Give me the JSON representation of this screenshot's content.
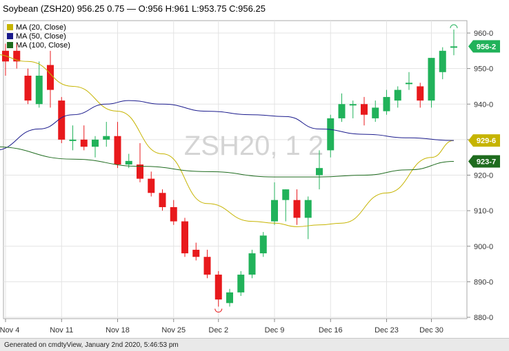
{
  "header": {
    "symbol": "Soybean (ZSH20)",
    "last": "956.25",
    "change": "0.75",
    "ohlc": "— O:956 H:961 L:953.75 C:956.25"
  },
  "watermark": "ZSH20, 1 2",
  "footer": "Generated on cmdtyView, January 2nd 2020, 5:46:53 pm",
  "colors": {
    "up": "#21b25a",
    "down": "#e8191c",
    "ma20": "#c6b400",
    "ma50": "#1a1a8c",
    "ma100": "#1e6b1e"
  },
  "chart_data": {
    "type": "candlestick",
    "ylim": [
      880,
      965
    ],
    "yticks": [
      "960-0",
      "950-0",
      "940-0",
      "930-0",
      "920-0",
      "910-0",
      "900-0",
      "890-0",
      "880-0"
    ],
    "xticks": [
      "Nov 4",
      "Nov 11",
      "Nov 18",
      "Nov 25",
      "Dec 2",
      "Dec 9",
      "Dec 16",
      "Dec 23",
      "Dec 30"
    ],
    "xtick_index": [
      0,
      5,
      10,
      15,
      19,
      24,
      29,
      34,
      38
    ],
    "legend": [
      "MA (20, Close)",
      "MA (50, Close)",
      "MA (100, Close)"
    ],
    "badges": [
      {
        "label": "956-2",
        "value": 956.25,
        "color": "#21b25a"
      },
      {
        "label": "929-6",
        "value": 929.75,
        "color": "#c6b400"
      },
      {
        "label": "923-7",
        "value": 923.875,
        "color": "#1e6b1e"
      }
    ],
    "candles": [
      {
        "o": 955,
        "h": 957,
        "l": 948,
        "c": 952
      },
      {
        "o": 955,
        "h": 957,
        "l": 950,
        "c": 952
      },
      {
        "o": 948,
        "h": 950,
        "l": 940,
        "c": 941
      },
      {
        "o": 940,
        "h": 952,
        "l": 939,
        "c": 948
      },
      {
        "o": 951,
        "h": 955,
        "l": 939,
        "c": 944
      },
      {
        "o": 941,
        "h": 942,
        "l": 929,
        "c": 930
      },
      {
        "o": 930,
        "h": 934,
        "l": 927,
        "c": 930
      },
      {
        "o": 930,
        "h": 934,
        "l": 927,
        "c": 928
      },
      {
        "o": 928,
        "h": 931,
        "l": 925,
        "c": 930
      },
      {
        "o": 930,
        "h": 935,
        "l": 928,
        "c": 931
      },
      {
        "o": 931,
        "h": 935,
        "l": 922,
        "c": 923
      },
      {
        "o": 923,
        "h": 926,
        "l": 922,
        "c": 924
      },
      {
        "o": 923,
        "h": 929,
        "l": 918,
        "c": 919
      },
      {
        "o": 919,
        "h": 921,
        "l": 914,
        "c": 915
      },
      {
        "o": 915,
        "h": 916,
        "l": 910,
        "c": 911
      },
      {
        "o": 911,
        "h": 913,
        "l": 906,
        "c": 907
      },
      {
        "o": 907,
        "h": 908,
        "l": 897,
        "c": 898
      },
      {
        "o": 899,
        "h": 901,
        "l": 896,
        "c": 897
      },
      {
        "o": 897,
        "h": 899,
        "l": 891,
        "c": 892
      },
      {
        "o": 892,
        "h": 893,
        "l": 883,
        "c": 885
      },
      {
        "o": 884,
        "h": 888,
        "l": 883,
        "c": 887
      },
      {
        "o": 887,
        "h": 893,
        "l": 886,
        "c": 892
      },
      {
        "o": 892,
        "h": 899,
        "l": 891,
        "c": 898
      },
      {
        "o": 898,
        "h": 904,
        "l": 897,
        "c": 903
      },
      {
        "o": 907,
        "h": 918,
        "l": 906,
        "c": 913
      },
      {
        "o": 913,
        "h": 916,
        "l": 907,
        "c": 916
      },
      {
        "o": 913,
        "h": 916,
        "l": 906,
        "c": 908
      },
      {
        "o": 908,
        "h": 914,
        "l": 902,
        "c": 913
      },
      {
        "o": 920,
        "h": 927,
        "l": 916,
        "c": 922
      },
      {
        "o": 927,
        "h": 937,
        "l": 925,
        "c": 936
      },
      {
        "o": 936,
        "h": 943,
        "l": 935,
        "c": 940
      },
      {
        "o": 940,
        "h": 941,
        "l": 936,
        "c": 940
      },
      {
        "o": 940,
        "h": 942,
        "l": 934,
        "c": 937
      },
      {
        "o": 936,
        "h": 941,
        "l": 935,
        "c": 939
      },
      {
        "o": 938,
        "h": 944,
        "l": 937,
        "c": 942
      },
      {
        "o": 941,
        "h": 945,
        "l": 939,
        "c": 944
      },
      {
        "o": 946,
        "h": 949,
        "l": 944,
        "c": 946
      },
      {
        "o": 945,
        "h": 946,
        "l": 939,
        "c": 941
      },
      {
        "o": 941,
        "h": 953,
        "l": 939,
        "c": 953
      },
      {
        "o": 949,
        "h": 956,
        "l": 947,
        "c": 955
      },
      {
        "o": 956,
        "h": 961,
        "l": 953.75,
        "c": 956.25
      }
    ],
    "ma20": [
      [
        -1,
        954
      ],
      [
        2,
        952
      ],
      [
        6,
        945
      ],
      [
        10,
        938
      ],
      [
        14,
        926
      ],
      [
        18,
        912
      ],
      [
        22,
        907
      ],
      [
        24,
        906.5
      ],
      [
        26,
        905.5
      ],
      [
        28,
        906
      ],
      [
        30,
        906.5
      ],
      [
        34,
        915
      ],
      [
        38,
        925
      ],
      [
        40,
        929.75
      ]
    ],
    "ma50": [
      [
        -1,
        927
      ],
      [
        3,
        933
      ],
      [
        6,
        937
      ],
      [
        9,
        940
      ],
      [
        11,
        941
      ],
      [
        14,
        940
      ],
      [
        18,
        938
      ],
      [
        22,
        937
      ],
      [
        25,
        936.5
      ],
      [
        28,
        933
      ],
      [
        32,
        931.5
      ],
      [
        36,
        930.5
      ],
      [
        40,
        929.75
      ]
    ],
    "ma100": [
      [
        -1,
        928
      ],
      [
        6,
        924.5
      ],
      [
        12,
        922.5
      ],
      [
        18,
        921
      ],
      [
        24,
        919.5
      ],
      [
        28,
        919.5
      ],
      [
        32,
        920
      ],
      [
        36,
        921.5
      ],
      [
        40,
        923.875
      ]
    ]
  }
}
